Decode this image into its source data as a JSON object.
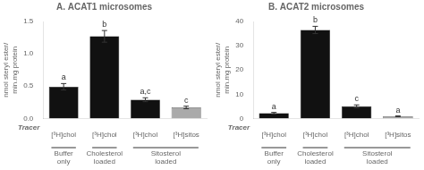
{
  "chart_data": [
    {
      "type": "bar",
      "title": "A. ACAT1 microsomes",
      "categories": [
        "[³H]chol",
        "[³H]chol",
        "[³H]chol",
        "[³H]sitos"
      ],
      "values": [
        0.49,
        1.27,
        0.29,
        0.17
      ],
      "errors": [
        0.05,
        0.09,
        0.03,
        0.02
      ],
      "colors": [
        "#111111",
        "#111111",
        "#111111",
        "#aaaaaa"
      ],
      "annotations": [
        "a",
        "b",
        "a,c",
        "c"
      ],
      "xlabel": "Tracer",
      "ylabel": "nmol steryl ester/\nmin.mg protein",
      "groups": [
        {
          "label": "Buffer\nonly",
          "span": [
            0,
            0
          ]
        },
        {
          "label": "Cholesterol\nloaded",
          "span": [
            1,
            1
          ]
        },
        {
          "label": "Sitosterol\nloaded",
          "span": [
            2,
            3
          ]
        }
      ],
      "ylim": [
        0,
        1.5
      ],
      "yticks": [
        {
          "value": 0,
          "label": "0.0"
        },
        0.5,
        {
          "value": 1,
          "label": "1.0"
        },
        1.5
      ],
      "grid": false
    },
    {
      "type": "bar",
      "title": "B. ACAT2 microsomes",
      "categories": [
        "[³H]chol",
        "[³H]chol",
        "[³H]chol",
        "[³H]sitos"
      ],
      "values": [
        2.2,
        36.5,
        5.0,
        0.9
      ],
      "errors": [
        0.3,
        1.5,
        0.6,
        0.15
      ],
      "colors": [
        "#111111",
        "#111111",
        "#111111",
        "#aaaaaa"
      ],
      "annotations": [
        "a",
        "b",
        "c",
        "a"
      ],
      "xlabel": "Tracer",
      "ylabel": "nmol steryl ester/\nmin.mg protein",
      "groups": [
        {
          "label": "Buffer\nonly",
          "span": [
            0,
            0
          ]
        },
        {
          "label": "Cholesterol\nloaded",
          "span": [
            1,
            1
          ]
        },
        {
          "label": "Sitosterol\nloaded",
          "span": [
            2,
            3
          ]
        }
      ],
      "ylim": [
        0,
        40
      ],
      "yticks": [
        0,
        10,
        20,
        30,
        40
      ],
      "grid": false
    }
  ]
}
